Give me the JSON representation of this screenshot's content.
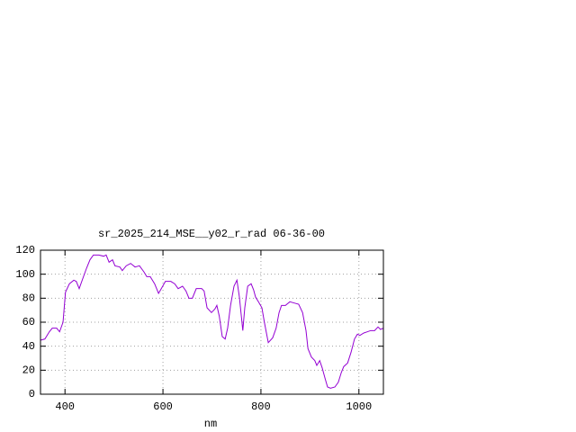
{
  "chart_data": {
    "type": "line",
    "title": "sr_2025_214_MSE__y02_r_rad 06-36-00",
    "xlabel": "nm",
    "xlim": [
      350,
      1050
    ],
    "xticks": [
      400,
      600,
      800,
      1000
    ],
    "ylim": [
      0,
      120
    ],
    "yticks": [
      0,
      20,
      40,
      60,
      80,
      100,
      120
    ],
    "grid": true,
    "series": [
      {
        "color": "#9400d3",
        "x": [
          350,
          359,
          368,
          374,
          383,
          389,
          396,
          401,
          409,
          418,
          423,
          429,
          436,
          444,
          451,
          458,
          469,
          479,
          484,
          490,
          497,
          502,
          512,
          517,
          525,
          534,
          543,
          552,
          561,
          567,
          574,
          583,
          591,
          598,
          605,
          616,
          624,
          631,
          640,
          647,
          653,
          660,
          668,
          679,
          684,
          690,
          699,
          706,
          710,
          715,
          721,
          727,
          732,
          738,
          745,
          751,
          756,
          763,
          767,
          773,
          780,
          785,
          789,
          795,
          802,
          807,
          815,
          824,
          831,
          837,
          842,
          850,
          859,
          868,
          877,
          885,
          892,
          896,
          903,
          910,
          914,
          920,
          925,
          931,
          936,
          942,
          951,
          958,
          964,
          969,
          977,
          984,
          991,
          997,
          1002,
          1010,
          1017,
          1024,
          1032,
          1039,
          1044,
          1050
        ],
        "values": [
          45,
          46,
          52,
          55,
          55,
          52,
          60,
          85,
          92,
          95,
          94,
          88,
          96,
          105,
          112,
          116,
          116,
          115,
          116,
          110,
          112,
          107,
          106,
          103,
          107,
          109,
          106,
          107,
          102,
          98,
          98,
          92,
          84,
          89,
          94,
          94,
          92,
          88,
          90,
          86,
          80,
          80,
          88,
          88,
          86,
          72,
          68,
          71,
          74,
          65,
          48,
          46,
          55,
          74,
          90,
          95,
          81,
          53,
          72,
          90,
          92,
          87,
          81,
          77,
          72,
          60,
          43,
          47,
          55,
          68,
          74,
          74,
          77,
          76,
          75,
          68,
          53,
          38,
          31,
          28,
          24,
          28,
          22,
          13,
          6,
          5,
          6,
          10,
          18,
          23,
          26,
          35,
          46,
          50,
          49,
          51,
          52,
          53,
          53,
          56,
          54,
          55
        ]
      }
    ]
  }
}
